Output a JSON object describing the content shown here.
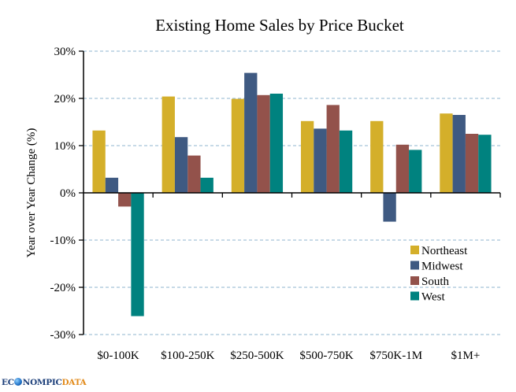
{
  "chart_data": {
    "type": "bar",
    "title": "Existing Home Sales by Price Bucket",
    "xlabel": "",
    "ylabel": "Year over Year Change (%)",
    "ylim": [
      -30,
      30
    ],
    "yticks": [
      30,
      20,
      10,
      0,
      -10,
      -20,
      -30
    ],
    "ytick_labels": [
      "30%",
      "20%",
      "10%",
      "0%",
      "-10%",
      "-20%",
      "-30%"
    ],
    "grid": true,
    "legend_position": "bottom-right",
    "categories": [
      "$0-100K",
      "$100-250K",
      "$250-500K",
      "$500-750K",
      "$750K-1M",
      "$1M+"
    ],
    "series": [
      {
        "name": "Northeast",
        "color": "#d4af2a",
        "values": [
          13.2,
          20.4,
          19.9,
          15.2,
          15.2,
          16.8
        ]
      },
      {
        "name": "Midwest",
        "color": "#3f5a82",
        "values": [
          3.2,
          11.8,
          25.4,
          13.6,
          -6.1,
          16.5
        ]
      },
      {
        "name": "South",
        "color": "#93524b",
        "values": [
          -2.9,
          7.9,
          20.7,
          18.6,
          10.2,
          12.5
        ]
      },
      {
        "name": "West",
        "color": "#00827f",
        "values": [
          -26.1,
          3.2,
          21.0,
          13.2,
          9.1,
          12.3
        ]
      }
    ]
  },
  "colors": {
    "gridline": "#8fb4cf",
    "axis": "#000000"
  },
  "logo": {
    "part1": "EC",
    "part2": "NOMPIC",
    "part3": "DATA"
  }
}
